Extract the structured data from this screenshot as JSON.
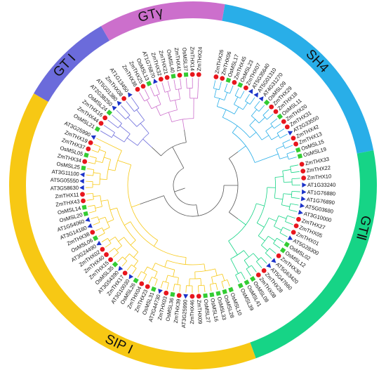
{
  "tree": {
    "colors": {
      "SH4": "#29aee8",
      "GT_II": "#16d486",
      "SIP_I": "#f7c814",
      "GT_I": "#6b6bdb",
      "GT_gamma": "#cc6fcc",
      "root": "#555555"
    },
    "marker_colors": {
      "Arabidopsis": "#1c33c9",
      "Oryza": "#33cc33",
      "Zea": "#e8161d"
    },
    "clades": [
      {
        "key": "SH4",
        "label": "SH4",
        "color_key": "SH4",
        "arc": [
          10,
          79
        ],
        "label_angle": 45,
        "label_rotate": 46
      },
      {
        "key": "GT_II",
        "label": "GTⅡ",
        "color_key": "GT_II",
        "arc": [
          79,
          160
        ],
        "label_angle": 104,
        "label_rotate": 105
      },
      {
        "key": "SIP_I",
        "label": "SIP I",
        "color_key": "SIP_I",
        "arc": [
          160,
          300
        ],
        "label_angle": 205,
        "label_rotate": 25
      },
      {
        "key": "GT_I",
        "label": "GT I",
        "color_key": "GT_I",
        "arc": [
          300,
          330
        ],
        "label_angle": 313,
        "label_rotate": -47
      },
      {
        "key": "GT_gamma",
        "label": "GTγ",
        "color_key": "GT_gamma",
        "arc": [
          330,
          370
        ],
        "label_angle": 346,
        "label_rotate": -14
      }
    ],
    "leaves": [
      {
        "name": "ZmTHX26",
        "sp": "Zea",
        "clade": "SH4",
        "a": 12.0
      },
      {
        "name": "ZmTHX06",
        "sp": "Zea",
        "clade": "SH4",
        "a": 15.3
      },
      {
        "name": "OsMSL17",
        "sp": "Oryza",
        "clade": "SH4",
        "a": 18.6
      },
      {
        "name": "ZmTHX45",
        "sp": "Zea",
        "clade": "SH4",
        "a": 21.9
      },
      {
        "name": "OsMSL23",
        "sp": "Oryza",
        "clade": "SH4",
        "a": 25.2
      },
      {
        "name": "ZmTHX07",
        "sp": "Zea",
        "clade": "SH4",
        "a": 28.5
      },
      {
        "name": "AT5G35640",
        "sp": "Arabidopsis",
        "clade": "SH4",
        "a": 31.8
      },
      {
        "name": "AT5G01310",
        "sp": "Arabidopsis",
        "clade": "SH4",
        "a": 35.1
      },
      {
        "name": "AT4G31270",
        "sp": "Arabidopsis",
        "clade": "SH4",
        "a": 38.4
      },
      {
        "name": "OsMSL09",
        "sp": "Oryza",
        "clade": "SH4",
        "a": 41.7
      },
      {
        "name": "ZmTHX29",
        "sp": "Zea",
        "clade": "SH4",
        "a": 45.0
      },
      {
        "name": "ZmTHX18",
        "sp": "Zea",
        "clade": "SH4",
        "a": 48.3
      },
      {
        "name": "OsMSL11",
        "sp": "Oryza",
        "clade": "SH4",
        "a": 51.6
      },
      {
        "name": "ZmTHX20",
        "sp": "Zea",
        "clade": "SH4",
        "a": 54.9
      },
      {
        "name": "ZmTHX31",
        "sp": "Zea",
        "clade": "SH4",
        "a": 58.2
      },
      {
        "name": "AT2G33550",
        "sp": "Arabidopsis",
        "clade": "SH4",
        "a": 61.5
      },
      {
        "name": "ZmTHX42",
        "sp": "Zea",
        "clade": "SH4",
        "a": 64.8
      },
      {
        "name": "ZmTHX13",
        "sp": "Zea",
        "clade": "SH4",
        "a": 68.1
      },
      {
        "name": "OsMSL15",
        "sp": "Oryza",
        "clade": "SH4",
        "a": 71.4
      },
      {
        "name": "OsMSL19",
        "sp": "Oryza",
        "clade": "SH4",
        "a": 74.7
      },
      {
        "name": "ZmTHX33",
        "sp": "Zea",
        "clade": "GT_II",
        "a": 79.0
      },
      {
        "name": "ZmTHX22",
        "sp": "Zea",
        "clade": "GT_II",
        "a": 82.6
      },
      {
        "name": "ZmTHX10",
        "sp": "Zea",
        "clade": "GT_II",
        "a": 86.2
      },
      {
        "name": "AT1G33240",
        "sp": "Arabidopsis",
        "clade": "GT_II",
        "a": 89.8
      },
      {
        "name": "AT1G76880",
        "sp": "Arabidopsis",
        "clade": "GT_II",
        "a": 93.4
      },
      {
        "name": "AT1G76890",
        "sp": "Arabidopsis",
        "clade": "GT_II",
        "a": 97.0
      },
      {
        "name": "AT5G03680",
        "sp": "Arabidopsis",
        "clade": "GT_II",
        "a": 100.6
      },
      {
        "name": "AT3G10000",
        "sp": "Arabidopsis",
        "clade": "GT_II",
        "a": 104.2
      },
      {
        "name": "ZmTHX27",
        "sp": "Zea",
        "clade": "GT_II",
        "a": 107.8
      },
      {
        "name": "ZmTHX05",
        "sp": "Zea",
        "clade": "GT_II",
        "a": 111.4
      },
      {
        "name": "ZmTHX01",
        "sp": "Zea",
        "clade": "GT_II",
        "a": 115.0
      },
      {
        "name": "AT5G28300",
        "sp": "Arabidopsis",
        "clade": "GT_II",
        "a": 118.6
      },
      {
        "name": "OsMSL02",
        "sp": "Oryza",
        "clade": "GT_II",
        "a": 122.2
      },
      {
        "name": "OsMSL12",
        "sp": "Oryza",
        "clade": "GT_II",
        "a": 125.8
      },
      {
        "name": "ZmTHX30",
        "sp": "Zea",
        "clade": "GT_II",
        "a": 129.4
      },
      {
        "name": "AT5G63420",
        "sp": "Arabidopsis",
        "clade": "GT_II",
        "a": 133.0
      },
      {
        "name": "AT5G47660",
        "sp": "Arabidopsis",
        "clade": "GT_II",
        "a": 136.6
      },
      {
        "name": "ZmTHX28",
        "sp": "Zea",
        "clade": "GT_II",
        "a": 140.2
      },
      {
        "name": "ZmTHX08",
        "sp": "Zea",
        "clade": "GT_II",
        "a": 143.8
      },
      {
        "name": "OsMSL08",
        "sp": "Oryza",
        "clade": "GT_II",
        "a": 147.4
      },
      {
        "name": "OsMSL41",
        "sp": "Oryza",
        "clade": "GT_II",
        "a": 151.0
      },
      {
        "name": "OsMSL39",
        "sp": "Oryza",
        "clade": "GT_II",
        "a": 154.6
      },
      {
        "name": "OsMSL10",
        "sp": "Oryza",
        "clade": "SIP_I",
        "a": 160.0
      },
      {
        "name": "OsMSL28",
        "sp": "Oryza",
        "clade": "SIP_I",
        "a": 163.4
      },
      {
        "name": "OsMSL33",
        "sp": "Oryza",
        "clade": "SIP_I",
        "a": 166.8
      },
      {
        "name": "OsMSL16",
        "sp": "Oryza",
        "clade": "SIP_I",
        "a": 170.2
      },
      {
        "name": "OsMSL27",
        "sp": "Oryza",
        "clade": "SIP_I",
        "a": 173.6
      },
      {
        "name": "ZmTHX09",
        "sp": "Zea",
        "clade": "SIP_I",
        "a": 177.0
      },
      {
        "name": "ZmTHX46",
        "sp": "Zea",
        "clade": "SIP_I",
        "a": 180.4
      },
      {
        "name": "AT3G25990",
        "sp": "Arabidopsis",
        "clade": "SIP_I",
        "a": 183.8
      },
      {
        "name": "ZmTHX39",
        "sp": "Zea",
        "clade": "SIP_I",
        "a": 187.2
      },
      {
        "name": "OsMSL36",
        "sp": "Oryza",
        "clade": "SIP_I",
        "a": 190.6
      },
      {
        "name": "ZmTHX03",
        "sp": "Zea",
        "clade": "SIP_I",
        "a": 194.0
      },
      {
        "name": "AT2G44730",
        "sp": "Arabidopsis",
        "clade": "SIP_I",
        "a": 197.4
      },
      {
        "name": "OsMSL31",
        "sp": "Oryza",
        "clade": "SIP_I",
        "a": 200.8
      },
      {
        "name": "ZmTHX23",
        "sp": "Zea",
        "clade": "SIP_I",
        "a": 204.2
      },
      {
        "name": "ZmTHX04",
        "sp": "Zea",
        "clade": "SIP_I",
        "a": 207.6
      },
      {
        "name": "OsMSL26",
        "sp": "Oryza",
        "clade": "SIP_I",
        "a": 211.0
      },
      {
        "name": "AT3G10030",
        "sp": "Arabidopsis",
        "clade": "SIP_I",
        "a": 214.4
      },
      {
        "name": "ZmTHX17",
        "sp": "Zea",
        "clade": "SIP_I",
        "a": 217.8
      },
      {
        "name": "AT3G54390",
        "sp": "Arabidopsis",
        "clade": "SIP_I",
        "a": 221.2
      },
      {
        "name": "OsMSL35",
        "sp": "Oryza",
        "clade": "SIP_I",
        "a": 224.6
      },
      {
        "name": "ZmTHX15",
        "sp": "Zea",
        "clade": "SIP_I",
        "a": 228.0
      },
      {
        "name": "ZmTHX40",
        "sp": "Zea",
        "clade": "SIP_I",
        "a": 231.4
      },
      {
        "name": "ZmTHX02",
        "sp": "Zea",
        "clade": "SIP_I",
        "a": 234.8
      },
      {
        "name": "AT3G24490",
        "sp": "Arabidopsis",
        "clade": "SIP_I",
        "a": 238.2
      },
      {
        "name": "OsMSL06",
        "sp": "Oryza",
        "clade": "SIP_I",
        "a": 241.6
      },
      {
        "name": "ZmTHX38",
        "sp": "Zea",
        "clade": "SIP_I",
        "a": 245.0
      },
      {
        "name": "AT3G14180",
        "sp": "Arabidopsis",
        "clade": "SIP_I",
        "a": 248.4
      },
      {
        "name": "AT1G54060",
        "sp": "Arabidopsis",
        "clade": "SIP_I",
        "a": 251.8
      },
      {
        "name": "OsMSL20",
        "sp": "Oryza",
        "clade": "SIP_I",
        "a": 255.2
      },
      {
        "name": "OsMSL14",
        "sp": "Oryza",
        "clade": "SIP_I",
        "a": 258.6
      },
      {
        "name": "ZmTHX43",
        "sp": "Zea",
        "clade": "SIP_I",
        "a": 262.0
      },
      {
        "name": "ZmTHX11",
        "sp": "Zea",
        "clade": "SIP_I",
        "a": 265.4
      },
      {
        "name": "AT3G58630",
        "sp": "Arabidopsis",
        "clade": "SIP_I",
        "a": 268.8
      },
      {
        "name": "AT5G05550",
        "sp": "Arabidopsis",
        "clade": "SIP_I",
        "a": 272.2
      },
      {
        "name": "AT3G11100",
        "sp": "Arabidopsis",
        "clade": "SIP_I",
        "a": 275.6
      },
      {
        "name": "OsMSL25",
        "sp": "Oryza",
        "clade": "SIP_I",
        "a": 279.0
      },
      {
        "name": "ZmTHX34",
        "sp": "Zea",
        "clade": "SIP_I",
        "a": 282.4
      },
      {
        "name": "OsMSL05",
        "sp": "Oryza",
        "clade": "SIP_I",
        "a": 285.8
      },
      {
        "name": "ZmTHX37",
        "sp": "Zea",
        "clade": "SIP_I",
        "a": 289.2
      },
      {
        "name": "ZmTHX19",
        "sp": "Zea",
        "clade": "SIP_I",
        "a": 292.6
      },
      {
        "name": "AT3G25990",
        "sp": "Arabidopsis",
        "clade": "SIP_I",
        "a": 296.0
      },
      {
        "name": "OsMSL21",
        "sp": "Oryza",
        "clade": "GT_I",
        "a": 300.5
      },
      {
        "name": "ZmTHX44",
        "sp": "Zea",
        "clade": "GT_I",
        "a": 304.0
      },
      {
        "name": "ZmTHX16",
        "sp": "Zea",
        "clade": "GT_I",
        "a": 307.5
      },
      {
        "name": "OsMSL24",
        "sp": "Oryza",
        "clade": "GT_I",
        "a": 311.0
      },
      {
        "name": "AT2G38250",
        "sp": "Arabidopsis",
        "clade": "GT_I",
        "a": 314.5
      },
      {
        "name": "AT5G01380",
        "sp": "Arabidopsis",
        "clade": "GT_I",
        "a": 318.0
      },
      {
        "name": "ZmTHX08",
        "sp": "Zea",
        "clade": "GT_I",
        "a": 321.5
      },
      {
        "name": "AT1G13450",
        "sp": "Arabidopsis",
        "clade": "GT_I",
        "a": 325.0
      },
      {
        "name": "ZmTHX36",
        "sp": "Zea",
        "clade": "GT_gamma",
        "a": 330.0
      },
      {
        "name": "ZmTHX25",
        "sp": "Zea",
        "clade": "GT_gamma",
        "a": 333.3
      },
      {
        "name": "OsMSL13",
        "sp": "Oryza",
        "clade": "GT_gamma",
        "a": 336.6
      },
      {
        "name": "AT1G76870",
        "sp": "Arabidopsis",
        "clade": "GT_gamma",
        "a": 339.9
      },
      {
        "name": "ZmTHX32",
        "sp": "Zea",
        "clade": "GT_gamma",
        "a": 343.2
      },
      {
        "name": "ZmTHX21",
        "sp": "Zea",
        "clade": "GT_gamma",
        "a": 346.5
      },
      {
        "name": "OsMSL40",
        "sp": "Oryza",
        "clade": "GT_gamma",
        "a": 349.8
      },
      {
        "name": "ZmTHX41",
        "sp": "Zea",
        "clade": "GT_gamma",
        "a": 353.1
      },
      {
        "name": "OsMSL37",
        "sp": "Oryza",
        "clade": "GT_gamma",
        "a": 356.4
      },
      {
        "name": "ZmTHX14",
        "sp": "Zea",
        "clade": "GT_gamma",
        "a": 359.7
      },
      {
        "name": "ZmTHX24",
        "sp": "Zea",
        "clade": "GT_gamma",
        "a": 363.0
      }
    ]
  }
}
